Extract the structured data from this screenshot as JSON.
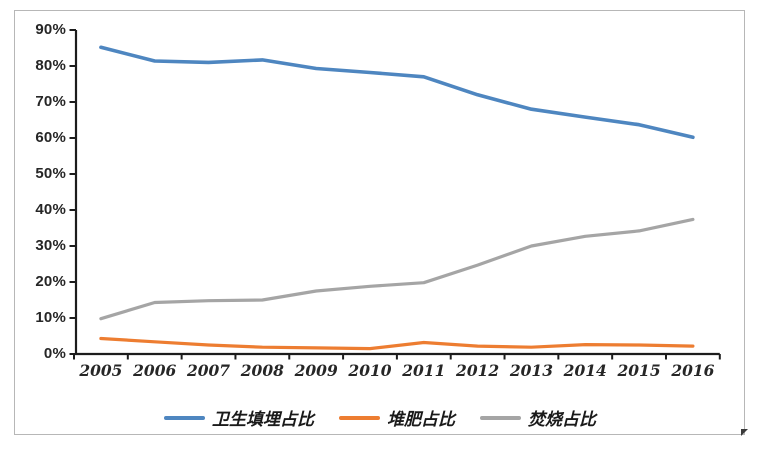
{
  "chart_data": {
    "type": "line",
    "categories": [
      "2005",
      "2006",
      "2007",
      "2008",
      "2009",
      "2010",
      "2011",
      "2012",
      "2013",
      "2014",
      "2015",
      "2016"
    ],
    "series": [
      {
        "name": "卫生填埋占比",
        "color": "#4e86c0",
        "values": [
          85.2,
          81.4,
          81.0,
          81.7,
          79.3,
          78.2,
          77.0,
          72.0,
          68.0,
          65.8,
          63.7,
          60.2
        ]
      },
      {
        "name": "堆肥占比",
        "color": "#ed7d31",
        "values": [
          4.3,
          3.4,
          2.5,
          1.9,
          1.7,
          1.5,
          3.2,
          2.2,
          1.9,
          2.6,
          2.5,
          2.2
        ]
      },
      {
        "name": "焚烧占比",
        "color": "#a5a5a5",
        "values": [
          9.8,
          14.3,
          14.8,
          15.0,
          17.5,
          18.8,
          19.8,
          24.7,
          30.0,
          32.7,
          34.2,
          37.4
        ]
      }
    ],
    "title": "",
    "xlabel": "",
    "ylabel": "",
    "ylim": [
      0,
      90
    ],
    "ytick_step": 10,
    "ytick_suffix": "%",
    "grid": false,
    "legend_position": "bottom"
  },
  "frame": {
    "border_color": "#b7b7b7",
    "background": "#ffffff"
  },
  "axis": {
    "line_color": "#1c1c1c",
    "label_color": "#262626"
  }
}
